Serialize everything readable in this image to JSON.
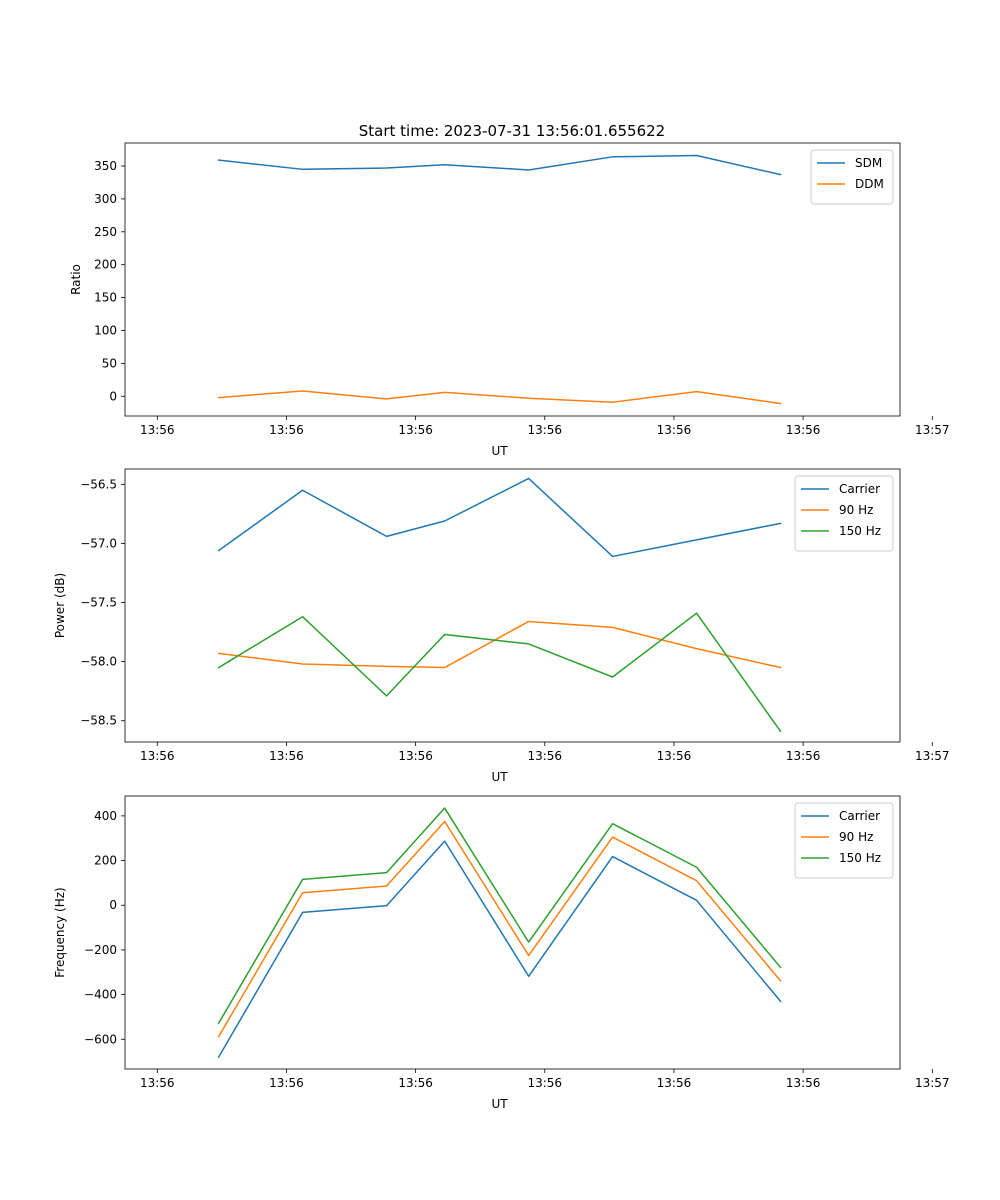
{
  "figure": {
    "title": "Start time: 2023-07-31 13:56:01.655622"
  },
  "colors": {
    "series_1": "#1f77b4",
    "series_2": "#ff7f0e",
    "series_3": "#2ca02c",
    "axis": "#000000",
    "legend_border": "#cccccc"
  },
  "chart_data": [
    {
      "type": "line",
      "title": "Start time: 2023-07-31 13:56:01.655622",
      "xlabel": "UT",
      "ylabel": "Ratio",
      "xlim": [
        0,
        12
      ],
      "ylim": [
        -30,
        385
      ],
      "x_ticks": [
        0.5,
        2.5,
        4.5,
        6.5,
        8.5,
        10.5,
        12.5
      ],
      "x_tick_labels": [
        "13:56",
        "13:56",
        "13:56",
        "13:56",
        "13:56",
        "13:56",
        "13:57"
      ],
      "y_ticks": [
        0,
        50,
        100,
        150,
        200,
        250,
        300,
        350
      ],
      "y_tick_labels": [
        "0",
        "50",
        "100",
        "150",
        "200",
        "250",
        "300",
        "350"
      ],
      "legend": "top-right",
      "x": [
        1.45,
        2.75,
        4.05,
        4.95,
        6.25,
        7.55,
        8.85,
        10.15
      ],
      "series": [
        {
          "name": "SDM",
          "color": "#1f77b4",
          "values": [
            359,
            345,
            347,
            352,
            344,
            364,
            366,
            337
          ]
        },
        {
          "name": "DDM",
          "color": "#ff7f0e",
          "values": [
            -2,
            8,
            -4,
            6,
            -3,
            -9,
            7,
            -11
          ]
        }
      ]
    },
    {
      "type": "line",
      "title": "",
      "xlabel": "UT",
      "ylabel": "Power (dB)",
      "xlim": [
        0,
        12
      ],
      "ylim": [
        -58.68,
        -56.37
      ],
      "x_ticks": [
        0.5,
        2.5,
        4.5,
        6.5,
        8.5,
        10.5,
        12.5
      ],
      "x_tick_labels": [
        "13:56",
        "13:56",
        "13:56",
        "13:56",
        "13:56",
        "13:56",
        "13:57"
      ],
      "y_ticks": [
        -58.5,
        -58.0,
        -57.5,
        -57.0,
        -56.5
      ],
      "y_tick_labels": [
        "−58.5",
        "−58.0",
        "−57.5",
        "−57.0",
        "−56.5"
      ],
      "legend": "top-right",
      "x": [
        1.45,
        2.75,
        4.05,
        4.95,
        6.25,
        7.55,
        8.85,
        10.15
      ],
      "series": [
        {
          "name": "Carrier",
          "color": "#1f77b4",
          "values": [
            -57.06,
            -56.55,
            -56.94,
            -56.81,
            -56.45,
            -57.11,
            -56.97,
            -56.83
          ]
        },
        {
          "name": "90 Hz",
          "color": "#ff7f0e",
          "values": [
            -57.93,
            -58.02,
            -58.04,
            -58.05,
            -57.66,
            -57.71,
            -57.89,
            -58.05
          ]
        },
        {
          "name": "150 Hz",
          "color": "#2ca02c",
          "values": [
            -58.05,
            -57.62,
            -58.29,
            -57.77,
            -57.85,
            -58.13,
            -57.59,
            -58.59
          ]
        }
      ]
    },
    {
      "type": "line",
      "title": "",
      "xlabel": "UT",
      "ylabel": "Frequency (Hz)",
      "xlim": [
        0,
        12
      ],
      "ylim": [
        -733,
        489
      ],
      "x_ticks": [
        0.5,
        2.5,
        4.5,
        6.5,
        8.5,
        10.5,
        12.5
      ],
      "x_tick_labels": [
        "13:56",
        "13:56",
        "13:56",
        "13:56",
        "13:56",
        "13:56",
        "13:57"
      ],
      "y_ticks": [
        -600,
        -400,
        -200,
        0,
        200,
        400
      ],
      "y_tick_labels": [
        "−600",
        "−400",
        "−200",
        "0",
        "200",
        "400"
      ],
      "legend": "top-right",
      "x": [
        1.45,
        2.75,
        4.05,
        4.95,
        6.25,
        7.55,
        8.85,
        10.15
      ],
      "series": [
        {
          "name": "Carrier",
          "color": "#1f77b4",
          "values": [
            -680,
            -32,
            -2,
            287,
            -318,
            218,
            22,
            -430
          ]
        },
        {
          "name": "90 Hz",
          "color": "#ff7f0e",
          "values": [
            -588,
            56,
            86,
            375,
            -225,
            305,
            110,
            -338
          ]
        },
        {
          "name": "150 Hz",
          "color": "#2ca02c",
          "values": [
            -528,
            116,
            146,
            435,
            -165,
            365,
            170,
            -278
          ]
        }
      ]
    }
  ]
}
